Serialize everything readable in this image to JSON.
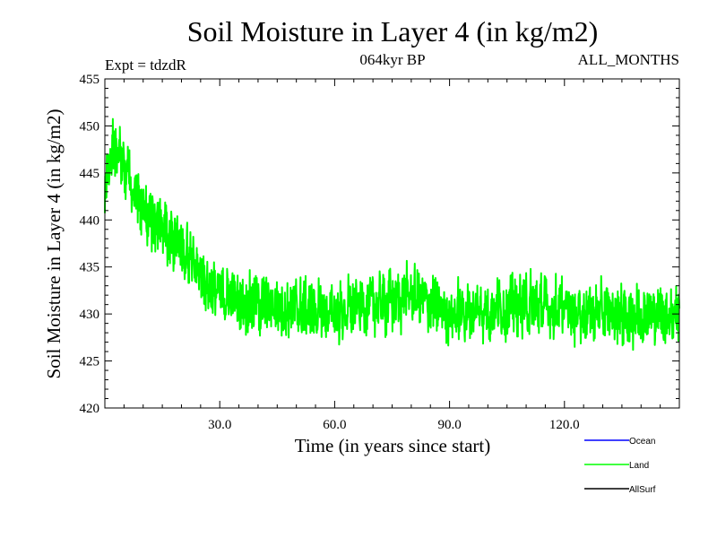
{
  "chart_data": {
    "type": "line",
    "title": "Soil Moisture in Layer 4 (in kg/m2)",
    "experiment": "Expt = tdzdR",
    "period": "064kyr BP",
    "months": "ALL_MONTHS",
    "xlabel": "Time (in years since start)",
    "ylabel": "Soil Moisture in Layer 4 (in kg/m2)",
    "xlim": [
      0,
      150
    ],
    "ylim": [
      420,
      455
    ],
    "x_ticks": [
      30,
      60,
      90,
      120
    ],
    "x_tick_labels": [
      "30.0",
      "60.0",
      "90.0",
      "120.0"
    ],
    "y_ticks": [
      420,
      425,
      430,
      435,
      440,
      445,
      450,
      455
    ],
    "y_tick_labels": [
      "420",
      "425",
      "430",
      "435",
      "440",
      "445",
      "450",
      "455"
    ],
    "samples_per_year": 12,
    "trend_knots": [
      [
        0,
        443
      ],
      [
        2,
        448
      ],
      [
        5,
        446
      ],
      [
        10,
        441
      ],
      [
        15,
        439
      ],
      [
        20,
        437
      ],
      [
        25,
        434
      ],
      [
        30,
        432
      ],
      [
        40,
        431
      ],
      [
        60,
        430
      ],
      [
        80,
        432
      ],
      [
        90,
        430
      ],
      [
        110,
        431
      ],
      [
        130,
        430
      ],
      [
        150,
        430
      ]
    ],
    "noise_amplitude": 3.5,
    "legend_position": "bottom-right",
    "series": [
      {
        "name": "Ocean",
        "color": "#0000ff",
        "shown": false
      },
      {
        "name": "Land",
        "color": "#00ff00",
        "shown": true
      },
      {
        "name": "AllSurf",
        "color": "#000000",
        "shown": false
      }
    ]
  }
}
